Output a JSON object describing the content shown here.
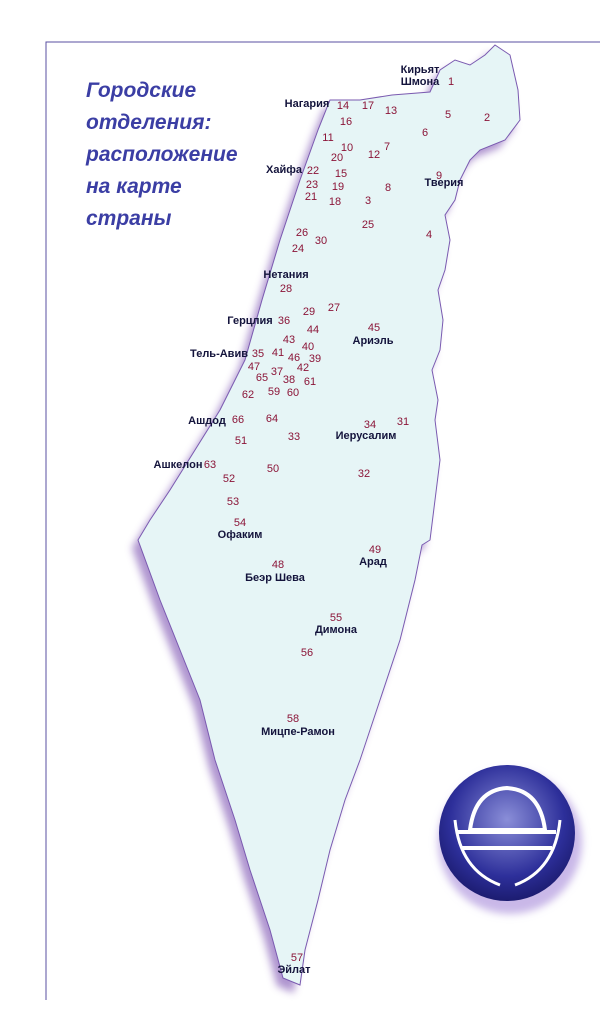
{
  "title_lines": [
    "Городские",
    "отделения:",
    "расположение",
    "на карте",
    "страны"
  ],
  "cities": [
    "Кирьят Шмона",
    "Нагария",
    "Хайфа",
    "Тверия",
    "Нетания",
    "Герцлия",
    "Ариэль",
    "Тель-Авив",
    "Ашдод",
    "Иерусалим",
    "Ашкелон",
    "Офаким",
    "Арад",
    "Беэр Шева",
    "Димона",
    "Мицпе-Рамон",
    "Эйлат"
  ],
  "branches": [
    1,
    2,
    3,
    4,
    5,
    6,
    7,
    8,
    9,
    10,
    11,
    12,
    13,
    14,
    15,
    16,
    17,
    18,
    19,
    20,
    21,
    22,
    23,
    24,
    25,
    26,
    27,
    28,
    29,
    30,
    31,
    32,
    33,
    34,
    35,
    36,
    37,
    38,
    39,
    40,
    41,
    42,
    43,
    44,
    45,
    46,
    47,
    48,
    49,
    50,
    51,
    52,
    53,
    54,
    55,
    56,
    57,
    58,
    59,
    60,
    61,
    62,
    63,
    64,
    65,
    66
  ]
}
